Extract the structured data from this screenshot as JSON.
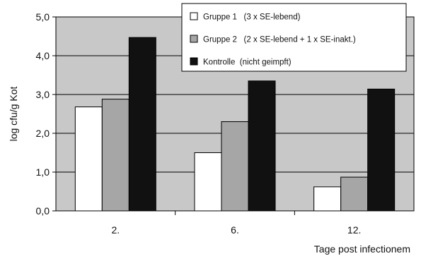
{
  "chart_data": {
    "type": "bar",
    "title": "",
    "xlabel": "Tage post infectionem",
    "ylabel": "log cfu/g Kot",
    "categories": [
      "2.",
      "6.",
      "12."
    ],
    "ylim": [
      0,
      5
    ],
    "yticks": [
      "0,0",
      "1,0",
      "2,0",
      "3,0",
      "4,0",
      "5,0"
    ],
    "grid": true,
    "legend_position": "top-right",
    "series": [
      {
        "name": "Gruppe 1   (3 x SE-lebend)",
        "values": [
          2.68,
          1.5,
          0.62
        ],
        "color": "#ffffff"
      },
      {
        "name": "Gruppe 2   (2 x SE-lebend + 1 x SE-inakt.)",
        "values": [
          2.88,
          2.3,
          0.87
        ],
        "color": "#a6a6a6"
      },
      {
        "name": "Kontrolle  (nicht geimpft)",
        "values": [
          4.47,
          3.35,
          3.14
        ],
        "color": "#111111"
      }
    ],
    "plot_background": "#c8c8c8"
  }
}
